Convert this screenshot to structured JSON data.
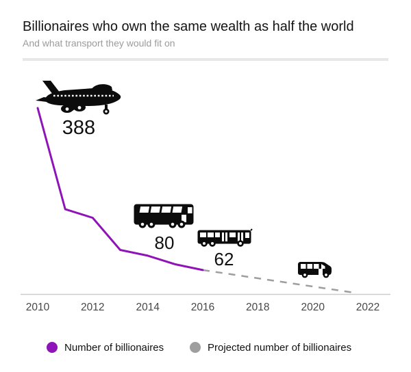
{
  "header": {
    "title": "Billionaires who own the same wealth as half the world",
    "subtitle": "And what transport they would fit on"
  },
  "chart_data": {
    "type": "line",
    "title": "Billionaires who own the same wealth as half the world",
    "subtitle": "And what transport they would fit on",
    "xlabel": "",
    "ylabel": "",
    "xlim": [
      2010,
      2022
    ],
    "ylim": [
      0,
      388
    ],
    "grid": false,
    "legend_position": "bottom",
    "x_ticks": [
      2010,
      2012,
      2014,
      2016,
      2018,
      2020,
      2022
    ],
    "series": [
      {
        "id": "actual",
        "name": "Number of billionaires",
        "style": "solid",
        "color": "#8e14b8",
        "points": [
          [
            2010,
            388
          ],
          [
            2011,
            177
          ],
          [
            2012,
            159
          ],
          [
            2013,
            92
          ],
          [
            2014,
            80
          ],
          [
            2015,
            62
          ],
          [
            2016,
            50
          ]
        ]
      },
      {
        "id": "projected",
        "name": "Projected number of billionaires",
        "style": "dashed",
        "color": "#9e9e9e",
        "points": [
          [
            2016,
            50
          ],
          [
            2021.6,
            2
          ]
        ]
      }
    ],
    "annotations": [
      {
        "icon": "jumbo-jet-icon",
        "label": "388"
      },
      {
        "icon": "double-decker-coach-icon",
        "label": "80"
      },
      {
        "icon": "city-bus-icon",
        "label": "62"
      },
      {
        "icon": "minibus-icon",
        "label": ""
      }
    ]
  },
  "legend": {
    "items": [
      {
        "label": "Number of billionaires",
        "color": "#8e14b8",
        "marker": "circle"
      },
      {
        "label": "Projected number of billionaires",
        "color": "#9e9e9e",
        "marker": "circle"
      }
    ]
  }
}
